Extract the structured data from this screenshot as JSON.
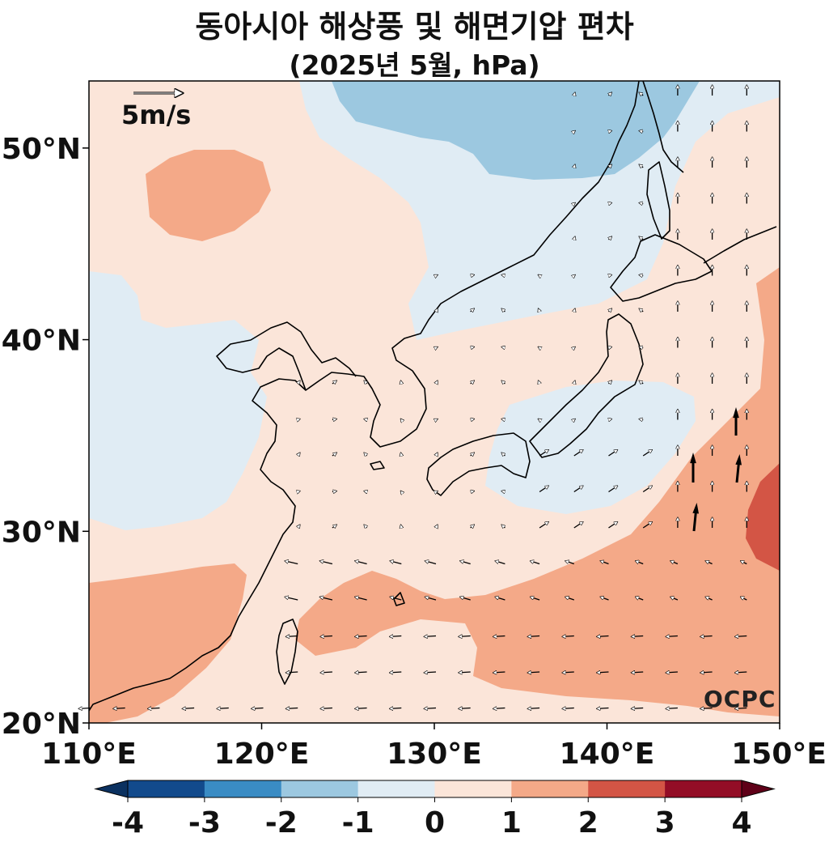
{
  "title": "동아시아 해상풍 및 해면기압 편차",
  "subtitle": "(2025년 5월, hPa)",
  "map": {
    "lon_range": [
      110,
      150
    ],
    "lat_range": [
      20,
      53.5
    ],
    "x_ticks": [
      {
        "value": 110,
        "label": "110°E"
      },
      {
        "value": 120,
        "label": "120°E"
      },
      {
        "value": 130,
        "label": "130°E"
      },
      {
        "value": 140,
        "label": "140°E"
      },
      {
        "value": 150,
        "label": "150°E"
      }
    ],
    "y_ticks": [
      {
        "value": 20,
        "label": "20°N"
      },
      {
        "value": 30,
        "label": "30°N"
      },
      {
        "value": 40,
        "label": "40°N"
      },
      {
        "value": 50,
        "label": "50°N"
      }
    ],
    "reference_vector": {
      "label": "5m/s",
      "speed": 5
    },
    "logo": "OCPC"
  },
  "colorbar": {
    "levels": [
      -4,
      -3,
      -2,
      -1,
      0,
      1,
      2,
      3,
      4
    ],
    "labels": [
      "-4",
      "-3",
      "-2",
      "-1",
      "0",
      "1",
      "2",
      "3",
      "4"
    ],
    "colors": [
      "#124a8c",
      "#3a8cc4",
      "#9cc8e0",
      "#e0ecf4",
      "#fbe5d9",
      "#f4a988",
      "#d35545",
      "#930d26"
    ],
    "under_color": "#0b3160",
    "over_color": "#5f0018",
    "extend": "both"
  },
  "colors": {
    "ocean_bg": "#fbe5d9",
    "coastline": "#000000"
  }
}
